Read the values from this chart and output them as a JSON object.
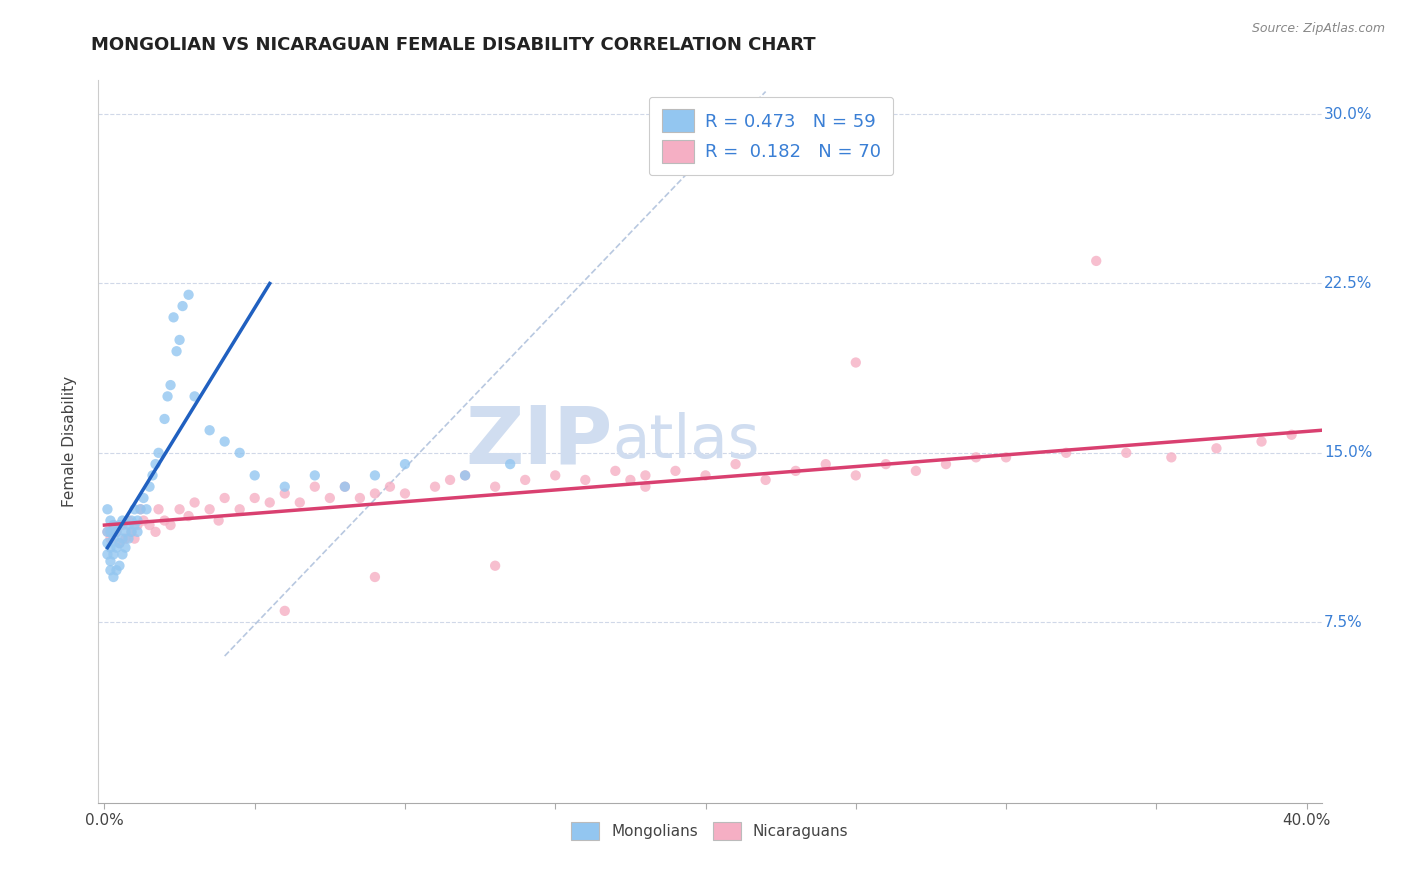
{
  "title": "MONGOLIAN VS NICARAGUAN FEMALE DISABILITY CORRELATION CHART",
  "source_text": "Source: ZipAtlas.com",
  "ylabel": "Female Disability",
  "xlim": [
    -0.002,
    0.405
  ],
  "ylim": [
    -0.005,
    0.315
  ],
  "xticks": [
    0.0,
    0.05,
    0.1,
    0.15,
    0.2,
    0.25,
    0.3,
    0.35,
    0.4
  ],
  "xticklabels": [
    "0.0%",
    "",
    "",
    "",
    "",
    "",
    "",
    "",
    "40.0%"
  ],
  "yticks": [
    0.075,
    0.15,
    0.225,
    0.3
  ],
  "yticklabels": [
    "7.5%",
    "15.0%",
    "22.5%",
    "30.0%"
  ],
  "mongolian_color": "#93c6f0",
  "nicaraguan_color": "#f5afc4",
  "mongolian_line_color": "#2060c0",
  "nicaraguan_line_color": "#d94070",
  "ref_line_color": "#b8c8e0",
  "legend_R1": "0.473",
  "legend_N1": "59",
  "legend_R2": "0.182",
  "legend_N2": "70",
  "legend_text_color": "#3a7fd5",
  "watermark_color": "#d0ddf0",
  "background_color": "#ffffff",
  "grid_color": "#d0d8e8",
  "title_fontsize": 13,
  "axis_label_fontsize": 11,
  "tick_fontsize": 11,
  "legend_fontsize": 13,
  "mongolian_x": [
    0.001,
    0.001,
    0.001,
    0.001,
    0.002,
    0.002,
    0.002,
    0.002,
    0.002,
    0.003,
    0.003,
    0.003,
    0.003,
    0.004,
    0.004,
    0.004,
    0.005,
    0.005,
    0.005,
    0.006,
    0.006,
    0.006,
    0.007,
    0.007,
    0.008,
    0.008,
    0.009,
    0.009,
    0.01,
    0.01,
    0.011,
    0.011,
    0.012,
    0.013,
    0.014,
    0.015,
    0.016,
    0.017,
    0.018,
    0.02,
    0.021,
    0.022,
    0.023,
    0.024,
    0.025,
    0.026,
    0.028,
    0.03,
    0.035,
    0.04,
    0.045,
    0.05,
    0.06,
    0.07,
    0.08,
    0.09,
    0.1,
    0.12,
    0.135
  ],
  "mongolian_y": [
    0.125,
    0.115,
    0.11,
    0.105,
    0.12,
    0.115,
    0.108,
    0.102,
    0.098,
    0.118,
    0.112,
    0.105,
    0.095,
    0.115,
    0.108,
    0.098,
    0.118,
    0.11,
    0.1,
    0.12,
    0.112,
    0.105,
    0.115,
    0.108,
    0.118,
    0.112,
    0.12,
    0.115,
    0.125,
    0.118,
    0.12,
    0.115,
    0.125,
    0.13,
    0.125,
    0.135,
    0.14,
    0.145,
    0.15,
    0.165,
    0.175,
    0.18,
    0.21,
    0.195,
    0.2,
    0.215,
    0.22,
    0.175,
    0.16,
    0.155,
    0.15,
    0.14,
    0.135,
    0.14,
    0.135,
    0.14,
    0.145,
    0.14,
    0.145
  ],
  "nicaraguan_x": [
    0.001,
    0.002,
    0.003,
    0.004,
    0.005,
    0.006,
    0.007,
    0.008,
    0.009,
    0.01,
    0.011,
    0.012,
    0.013,
    0.015,
    0.017,
    0.018,
    0.02,
    0.022,
    0.025,
    0.028,
    0.03,
    0.035,
    0.038,
    0.04,
    0.045,
    0.05,
    0.055,
    0.06,
    0.065,
    0.07,
    0.075,
    0.08,
    0.085,
    0.09,
    0.095,
    0.1,
    0.11,
    0.115,
    0.12,
    0.13,
    0.14,
    0.15,
    0.16,
    0.17,
    0.175,
    0.18,
    0.19,
    0.2,
    0.21,
    0.22,
    0.23,
    0.24,
    0.25,
    0.26,
    0.27,
    0.28,
    0.29,
    0.3,
    0.32,
    0.34,
    0.355,
    0.37,
    0.385,
    0.395,
    0.33,
    0.25,
    0.18,
    0.13,
    0.09,
    0.06
  ],
  "nicaraguan_y": [
    0.115,
    0.112,
    0.118,
    0.115,
    0.11,
    0.118,
    0.112,
    0.12,
    0.115,
    0.112,
    0.118,
    0.125,
    0.12,
    0.118,
    0.115,
    0.125,
    0.12,
    0.118,
    0.125,
    0.122,
    0.128,
    0.125,
    0.12,
    0.13,
    0.125,
    0.13,
    0.128,
    0.132,
    0.128,
    0.135,
    0.13,
    0.135,
    0.13,
    0.132,
    0.135,
    0.132,
    0.135,
    0.138,
    0.14,
    0.135,
    0.138,
    0.14,
    0.138,
    0.142,
    0.138,
    0.14,
    0.142,
    0.14,
    0.145,
    0.138,
    0.142,
    0.145,
    0.14,
    0.145,
    0.142,
    0.145,
    0.148,
    0.148,
    0.15,
    0.15,
    0.148,
    0.152,
    0.155,
    0.158,
    0.235,
    0.19,
    0.135,
    0.1,
    0.095,
    0.08
  ],
  "mong_line_x": [
    0.001,
    0.055
  ],
  "mong_line_y": [
    0.108,
    0.225
  ],
  "nica_line_x": [
    0.0,
    0.405
  ],
  "nica_line_y": [
    0.118,
    0.16
  ],
  "ref_line_x": [
    0.04,
    0.22
  ],
  "ref_line_y": [
    0.06,
    0.31
  ]
}
